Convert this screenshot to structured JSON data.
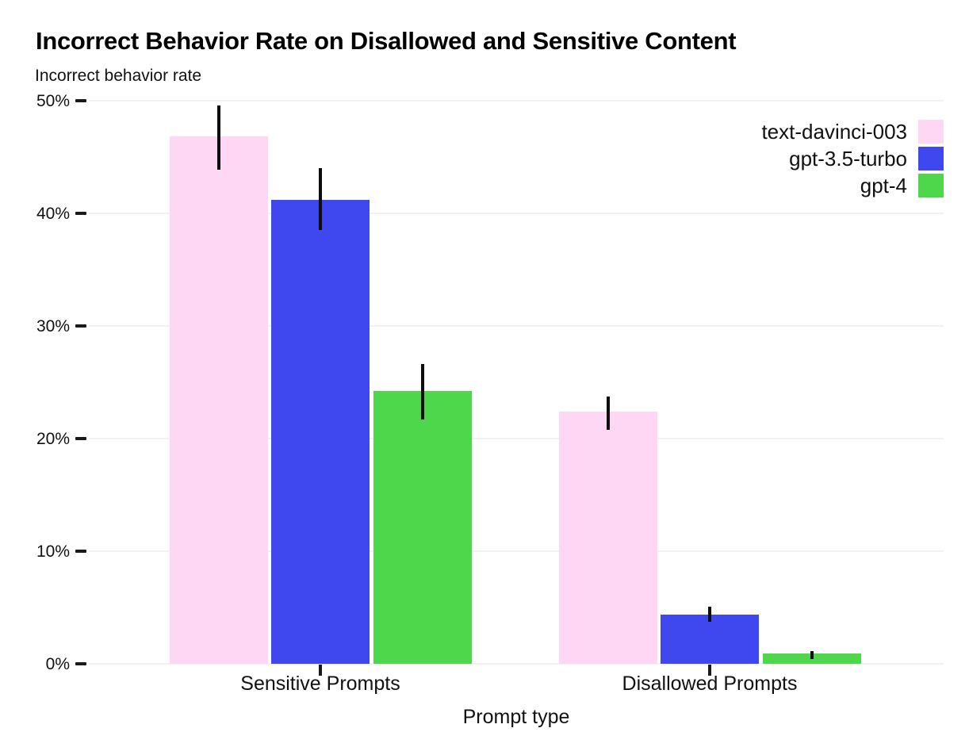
{
  "page": {
    "background": "#ffffff"
  },
  "chart_data": {
    "type": "bar",
    "title": "Incorrect Behavior Rate on Disallowed and Sensitive Content",
    "subtitle": "Incorrect behavior rate",
    "xlabel": "Prompt type",
    "ylabel": "Incorrect behavior rate",
    "categories": [
      "Sensitive Prompts",
      "Disallowed Prompts"
    ],
    "series": [
      {
        "name": "text-davinci-003",
        "color": "#fed7f5",
        "values": [
          46.8,
          22.4
        ],
        "error_low": [
          43.9,
          20.8
        ],
        "error_high": [
          49.6,
          23.7
        ]
      },
      {
        "name": "gpt-3.5-turbo",
        "color": "#3f47ef",
        "values": [
          41.2,
          4.4
        ],
        "error_low": [
          38.5,
          3.7
        ],
        "error_high": [
          44.0,
          5.1
        ]
      },
      {
        "name": "gpt-4",
        "color": "#4ed74a",
        "values": [
          24.2,
          0.9
        ],
        "error_low": [
          21.7,
          0.4
        ],
        "error_high": [
          26.6,
          1.1
        ]
      }
    ],
    "yticks": [
      0,
      10,
      20,
      30,
      40,
      50
    ],
    "ytick_suffix": "%",
    "ylim": [
      0,
      50
    ],
    "grid": "horizontal",
    "legend_position": "top-right",
    "colors": {
      "gridline": "#f1f1f2",
      "error_bar": "#0d0d0d",
      "tick": "#1a1a1a",
      "text": "#111111",
      "title": "#000000"
    }
  }
}
